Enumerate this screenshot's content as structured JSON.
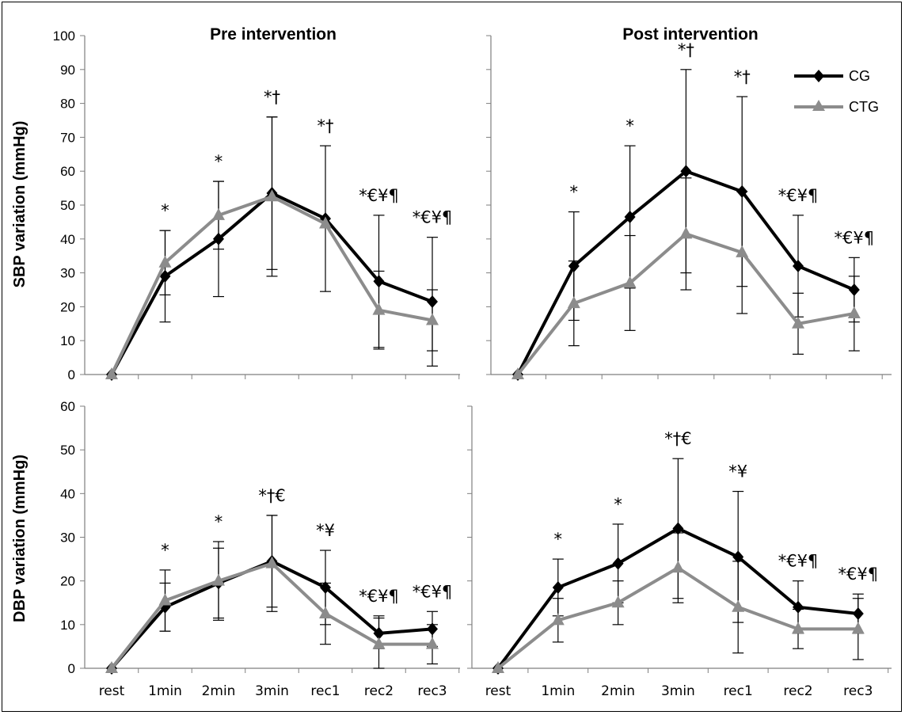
{
  "colors": {
    "cg": "#000000",
    "ctg": "#8c8c8c",
    "axis": "#7f7f7f"
  },
  "panel_titles": {
    "pre": "Pre intervention",
    "post": "Post intervention"
  },
  "y_labels": {
    "sbp": "SBP variation (mmHg)",
    "dbp": "DBP variation (mmHg)"
  },
  "legend": {
    "cg": "CG",
    "ctg": "CTG"
  },
  "chart_data": [
    {
      "id": "sbp_pre",
      "type": "line",
      "title": "Pre intervention",
      "ylabel": "SBP variation (mmHg)",
      "ylim": [
        0,
        100
      ],
      "yticks": [
        0,
        10,
        20,
        30,
        40,
        50,
        60,
        70,
        80,
        90,
        100
      ],
      "categories": [
        "rest",
        "1min",
        "2min",
        "3min",
        "rec1",
        "rec2",
        "rec3"
      ],
      "show_xticklabels": false,
      "series": [
        {
          "name": "CG",
          "values": [
            0,
            29,
            40,
            53.5,
            46,
            27.5,
            21.5
          ],
          "err": [
            null,
            13.5,
            17,
            22.5,
            21.5,
            19.5,
            19
          ]
        },
        {
          "name": "CTG",
          "values": [
            0,
            33,
            47,
            52.5,
            44.5,
            19,
            16
          ],
          "err": [
            null,
            9.5,
            10,
            23.5,
            null,
            11.5,
            9
          ]
        }
      ],
      "annotations": [
        "",
        "*",
        "*",
        "*†",
        "*†",
        "*€¥¶",
        "*€¥¶"
      ]
    },
    {
      "id": "sbp_post",
      "type": "line",
      "title": "Post intervention",
      "ylim": [
        0,
        100
      ],
      "categories": [
        "rest",
        "1min",
        "2min",
        "3min",
        "rec1",
        "rec2",
        "rec3"
      ],
      "show_xticklabels": false,
      "series": [
        {
          "name": "CG",
          "values": [
            0,
            32,
            46.5,
            60,
            54,
            32,
            25
          ],
          "err": [
            null,
            16,
            21,
            30,
            28,
            15,
            9.5
          ]
        },
        {
          "name": "CTG",
          "values": [
            0,
            21,
            27,
            41.5,
            36,
            15,
            18
          ],
          "err": [
            null,
            12.5,
            14,
            16.5,
            18,
            9,
            11
          ]
        }
      ],
      "annotations": [
        "",
        "*",
        "*",
        "*†",
        "*†",
        "*€¥¶",
        "*€¥¶"
      ]
    },
    {
      "id": "dbp_pre",
      "type": "line",
      "ylabel": "DBP variation (mmHg)",
      "ylim": [
        0,
        60
      ],
      "yticks": [
        0,
        10,
        20,
        30,
        40,
        50,
        60
      ],
      "categories": [
        "rest",
        "1min",
        "2min",
        "3min",
        "rec1",
        "rec2",
        "rec3"
      ],
      "show_xticklabels": true,
      "series": [
        {
          "name": "CG",
          "values": [
            0,
            14,
            19.5,
            24.5,
            18.5,
            8,
            9
          ],
          "err": [
            null,
            5.5,
            8,
            10.5,
            8.5,
            3.5,
            4
          ]
        },
        {
          "name": "CTG",
          "values": [
            0,
            15.5,
            20,
            24,
            12.5,
            5.5,
            5.5
          ],
          "err": [
            null,
            7,
            9,
            11,
            7,
            6.5,
            4.5
          ]
        }
      ],
      "annotations": [
        "",
        "*",
        "*",
        "*†€",
        "*¥",
        "*€¥¶",
        "*€¥¶"
      ]
    },
    {
      "id": "dbp_post",
      "type": "line",
      "ylim": [
        0,
        60
      ],
      "categories": [
        "rest",
        "1min",
        "2min",
        "3min",
        "rec1",
        "rec2",
        "rec3"
      ],
      "show_xticklabels": true,
      "series": [
        {
          "name": "CG",
          "values": [
            0,
            18.5,
            24,
            32,
            25.5,
            14,
            12.5
          ],
          "err": [
            null,
            6.5,
            9,
            16,
            15,
            6,
            4.5
          ]
        },
        {
          "name": "CTG",
          "values": [
            0,
            11,
            15,
            23,
            14,
            9,
            9
          ],
          "err": [
            null,
            5,
            5,
            8,
            10.5,
            4.5,
            7
          ]
        }
      ],
      "annotations": [
        "",
        "*",
        "*",
        "*†€",
        "*¥",
        "*€¥¶",
        "*€¥¶"
      ]
    }
  ]
}
